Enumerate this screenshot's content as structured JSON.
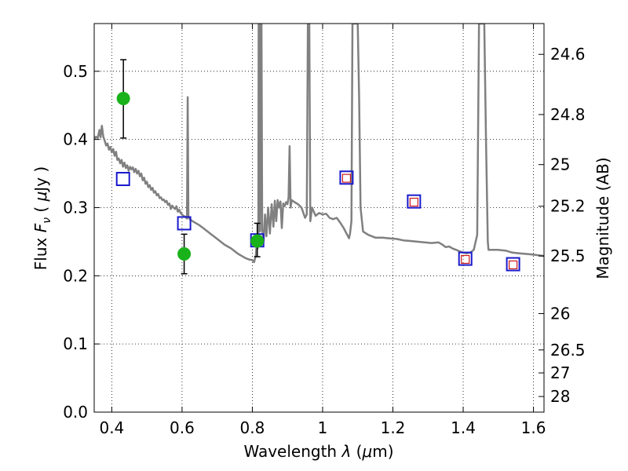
{
  "chart_data": {
    "type": "scatter",
    "xlabel": "Wavelength  λ (μm)",
    "ylabel": "Flux  F_ν  ( μJy )",
    "ylabel_parts": {
      "prefix": "Flux  ",
      "var": "F",
      "sub": "ν",
      "mid": "  ( ",
      "mu": "μ",
      "suffix": "Jy )"
    },
    "xlabel_parts": {
      "prefix": "Wavelength  ",
      "var": "λ",
      "mid": " (",
      "mu": "μ",
      "suffix": "m)"
    },
    "y2label": "Magnitude (AB)",
    "xlim": [
      0.35,
      1.63
    ],
    "ylim": [
      0.0,
      0.57
    ],
    "grid": true,
    "x_ticks": [
      {
        "value": 0.4,
        "label": "0.4"
      },
      {
        "value": 0.6,
        "label": "0.6"
      },
      {
        "value": 0.8,
        "label": "0.8"
      },
      {
        "value": 1.0,
        "label": "1"
      },
      {
        "value": 1.2,
        "label": "1.2"
      },
      {
        "value": 1.4,
        "label": "1.4"
      },
      {
        "value": 1.6,
        "label": "1.6"
      }
    ],
    "y_ticks": [
      {
        "value": 0.0,
        "label": "0.0"
      },
      {
        "value": 0.1,
        "label": "0.1"
      },
      {
        "value": 0.2,
        "label": "0.2"
      },
      {
        "value": 0.3,
        "label": "0.3"
      },
      {
        "value": 0.4,
        "label": "0.4"
      },
      {
        "value": 0.5,
        "label": "0.5"
      }
    ],
    "mag_ticks": [
      {
        "value": 24.6,
        "label": "24.6"
      },
      {
        "value": 24.8,
        "label": "24.8"
      },
      {
        "value": 25.0,
        "label": "25"
      },
      {
        "value": 25.2,
        "label": "25.2"
      },
      {
        "value": 25.5,
        "label": "25.5"
      },
      {
        "value": 26.0,
        "label": "26"
      },
      {
        "value": 26.5,
        "label": "26.5"
      },
      {
        "value": 27.0,
        "label": "27"
      },
      {
        "value": 28.0,
        "label": "28"
      }
    ],
    "model_spectrum": {
      "color": "#808080",
      "points": [
        [
          0.35,
          0.4
        ],
        [
          0.355,
          0.404
        ],
        [
          0.36,
          0.402
        ],
        [
          0.365,
          0.414
        ],
        [
          0.368,
          0.403
        ],
        [
          0.372,
          0.42
        ],
        [
          0.376,
          0.404
        ],
        [
          0.38,
          0.398
        ],
        [
          0.384,
          0.391
        ],
        [
          0.388,
          0.394
        ],
        [
          0.392,
          0.385
        ],
        [
          0.396,
          0.389
        ],
        [
          0.4,
          0.381
        ],
        [
          0.404,
          0.386
        ],
        [
          0.408,
          0.376
        ],
        [
          0.412,
          0.382
        ],
        [
          0.416,
          0.37
        ],
        [
          0.42,
          0.372
        ],
        [
          0.424,
          0.365
        ],
        [
          0.428,
          0.37
        ],
        [
          0.432,
          0.36
        ],
        [
          0.436,
          0.366
        ],
        [
          0.44,
          0.358
        ],
        [
          0.444,
          0.362
        ],
        [
          0.448,
          0.354
        ],
        [
          0.452,
          0.36
        ],
        [
          0.456,
          0.356
        ],
        [
          0.46,
          0.359
        ],
        [
          0.464,
          0.352
        ],
        [
          0.468,
          0.357
        ],
        [
          0.472,
          0.35
        ],
        [
          0.476,
          0.354
        ],
        [
          0.48,
          0.346
        ],
        [
          0.484,
          0.35
        ],
        [
          0.488,
          0.34
        ],
        [
          0.492,
          0.344
        ],
        [
          0.496,
          0.335
        ],
        [
          0.5,
          0.338
        ],
        [
          0.504,
          0.33
        ],
        [
          0.508,
          0.333
        ],
        [
          0.512,
          0.326
        ],
        [
          0.516,
          0.329
        ],
        [
          0.52,
          0.322
        ],
        [
          0.524,
          0.324
        ],
        [
          0.528,
          0.318
        ],
        [
          0.532,
          0.32
        ],
        [
          0.536,
          0.314
        ],
        [
          0.54,
          0.315
        ],
        [
          0.544,
          0.311
        ],
        [
          0.548,
          0.312
        ],
        [
          0.552,
          0.308
        ],
        [
          0.556,
          0.31
        ],
        [
          0.56,
          0.304
        ],
        [
          0.564,
          0.306
        ],
        [
          0.568,
          0.298
        ],
        [
          0.572,
          0.303
        ],
        [
          0.576,
          0.3
        ],
        [
          0.58,
          0.298
        ],
        [
          0.584,
          0.302
        ],
        [
          0.588,
          0.294
        ],
        [
          0.592,
          0.297
        ],
        [
          0.596,
          0.292
        ],
        [
          0.6,
          0.29
        ],
        [
          0.604,
          0.288
        ],
        [
          0.608,
          0.287
        ],
        [
          0.612,
          0.285
        ],
        [
          0.614,
          0.284
        ],
        [
          0.616,
          0.462
        ],
        [
          0.618,
          0.286
        ],
        [
          0.622,
          0.283
        ],
        [
          0.63,
          0.28
        ],
        [
          0.64,
          0.277
        ],
        [
          0.65,
          0.274
        ],
        [
          0.66,
          0.27
        ],
        [
          0.67,
          0.266
        ],
        [
          0.68,
          0.262
        ],
        [
          0.69,
          0.258
        ],
        [
          0.7,
          0.254
        ],
        [
          0.71,
          0.25
        ],
        [
          0.72,
          0.246
        ],
        [
          0.73,
          0.243
        ],
        [
          0.74,
          0.24
        ],
        [
          0.75,
          0.236
        ],
        [
          0.76,
          0.232
        ],
        [
          0.77,
          0.229
        ],
        [
          0.78,
          0.226
        ],
        [
          0.79,
          0.224
        ],
        [
          0.8,
          0.223
        ],
        [
          0.805,
          0.22
        ],
        [
          0.81,
          0.23
        ],
        [
          0.813,
          0.252
        ],
        [
          0.815,
          0.24
        ],
        [
          0.817,
          0.262
        ],
        [
          0.818,
          0.57
        ],
        [
          0.82,
          0.57
        ],
        [
          0.822,
          0.265
        ],
        [
          0.824,
          0.57
        ],
        [
          0.826,
          0.57
        ],
        [
          0.828,
          0.268
        ],
        [
          0.832,
          0.25
        ],
        [
          0.836,
          0.29
        ],
        [
          0.84,
          0.258
        ],
        [
          0.845,
          0.3
        ],
        [
          0.85,
          0.262
        ],
        [
          0.855,
          0.305
        ],
        [
          0.86,
          0.272
        ],
        [
          0.864,
          0.31
        ],
        [
          0.868,
          0.28
        ],
        [
          0.872,
          0.311
        ],
        [
          0.876,
          0.3
        ],
        [
          0.88,
          0.309
        ],
        [
          0.884,
          0.27
        ],
        [
          0.888,
          0.306
        ],
        [
          0.892,
          0.302
        ],
        [
          0.896,
          0.308
        ],
        [
          0.9,
          0.305
        ],
        [
          0.903,
          0.315
        ],
        [
          0.906,
          0.39
        ],
        [
          0.909,
          0.3
        ],
        [
          0.912,
          0.311
        ],
        [
          0.92,
          0.308
        ],
        [
          0.93,
          0.305
        ],
        [
          0.94,
          0.3
        ],
        [
          0.95,
          0.285
        ],
        [
          0.955,
          0.29
        ],
        [
          0.958,
          0.57
        ],
        [
          0.962,
          0.57
        ],
        [
          0.965,
          0.28
        ],
        [
          0.97,
          0.3
        ],
        [
          0.98,
          0.288
        ],
        [
          0.99,
          0.292
        ],
        [
          1.0,
          0.29
        ],
        [
          1.01,
          0.291
        ],
        [
          1.02,
          0.285
        ],
        [
          1.03,
          0.283
        ],
        [
          1.04,
          0.285
        ],
        [
          1.05,
          0.278
        ],
        [
          1.06,
          0.27
        ],
        [
          1.07,
          0.26
        ],
        [
          1.075,
          0.255
        ],
        [
          1.078,
          0.262
        ],
        [
          1.082,
          0.28
        ],
        [
          1.085,
          0.57
        ],
        [
          1.1,
          0.57
        ],
        [
          1.104,
          0.46
        ],
        [
          1.108,
          0.3
        ],
        [
          1.112,
          0.28
        ],
        [
          1.115,
          0.265
        ],
        [
          1.13,
          0.26
        ],
        [
          1.15,
          0.256
        ],
        [
          1.17,
          0.256
        ],
        [
          1.19,
          0.255
        ],
        [
          1.21,
          0.254
        ],
        [
          1.23,
          0.252
        ],
        [
          1.25,
          0.251
        ],
        [
          1.27,
          0.25
        ],
        [
          1.29,
          0.249
        ],
        [
          1.31,
          0.248
        ],
        [
          1.33,
          0.249
        ],
        [
          1.34,
          0.246
        ],
        [
          1.35,
          0.242
        ],
        [
          1.36,
          0.243
        ],
        [
          1.37,
          0.24
        ],
        [
          1.38,
          0.238
        ],
        [
          1.39,
          0.236
        ],
        [
          1.4,
          0.234
        ],
        [
          1.41,
          0.233
        ],
        [
          1.42,
          0.234
        ],
        [
          1.43,
          0.238
        ],
        [
          1.44,
          0.26
        ],
        [
          1.445,
          0.57
        ],
        [
          1.46,
          0.57
        ],
        [
          1.465,
          0.4
        ],
        [
          1.47,
          0.25
        ],
        [
          1.472,
          0.238
        ],
        [
          1.5,
          0.238
        ],
        [
          1.52,
          0.237
        ],
        [
          1.54,
          0.234
        ],
        [
          1.56,
          0.233
        ],
        [
          1.58,
          0.232
        ],
        [
          1.6,
          0.231
        ],
        [
          1.63,
          0.229
        ]
      ]
    },
    "observed_points": {
      "color": "#1ab21a",
      "points": [
        {
          "x": 0.433,
          "y": 0.46,
          "yerr_low": 0.402,
          "yerr_high": 0.517
        },
        {
          "x": 0.606,
          "y": 0.232,
          "yerr_low": 0.203,
          "yerr_high": 0.261
        },
        {
          "x": 0.814,
          "y": 0.251,
          "yerr_low": 0.228,
          "yerr_high": 0.277
        }
      ]
    },
    "model_photometry_blue": {
      "color": "#1a1acc",
      "points": [
        {
          "x": 0.432,
          "y": 0.342
        },
        {
          "x": 0.606,
          "y": 0.277
        },
        {
          "x": 0.814,
          "y": 0.252
        },
        {
          "x": 1.068,
          "y": 0.344
        },
        {
          "x": 1.26,
          "y": 0.309
        },
        {
          "x": 1.406,
          "y": 0.225
        },
        {
          "x": 1.542,
          "y": 0.217
        }
      ]
    },
    "model_photometry_red": {
      "color": "#cc1a1a",
      "points": [
        {
          "x": 1.068,
          "y": 0.343
        },
        {
          "x": 1.26,
          "y": 0.308
        },
        {
          "x": 1.406,
          "y": 0.224
        },
        {
          "x": 1.542,
          "y": 0.216
        }
      ]
    }
  }
}
